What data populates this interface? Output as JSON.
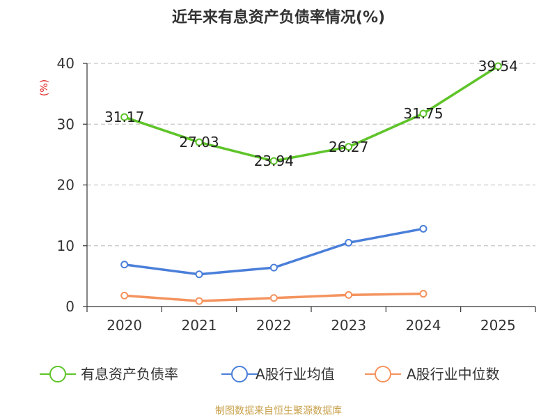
{
  "chart_data": {
    "type": "line",
    "title": "近年来有息资产负债率情况(%)",
    "ylabel": "(%)",
    "categories": [
      "2020",
      "2021",
      "2022",
      "2023",
      "2024",
      "2025"
    ],
    "yticks": [
      "0",
      "10",
      "20",
      "30",
      "40"
    ],
    "ylim": [
      0,
      40
    ],
    "grid": true,
    "legend_position": "bottom",
    "series": [
      {
        "name": "有息资产负债率",
        "color": "#5ec429",
        "values": [
          31.17,
          27.03,
          23.94,
          26.27,
          31.75,
          39.54
        ],
        "labels": [
          "31.17",
          "27.03",
          "23.94",
          "26.27",
          "31.75",
          "39.54"
        ]
      },
      {
        "name": "A股行业均值",
        "color": "#4a7fd9",
        "values": [
          6.9,
          5.3,
          6.4,
          10.5,
          12.8,
          null
        ]
      },
      {
        "name": "A股行业中位数",
        "color": "#f4935e",
        "values": [
          1.8,
          0.9,
          1.4,
          1.9,
          2.1,
          null
        ]
      }
    ]
  },
  "source": "制图数据来自恒生聚源数据库"
}
